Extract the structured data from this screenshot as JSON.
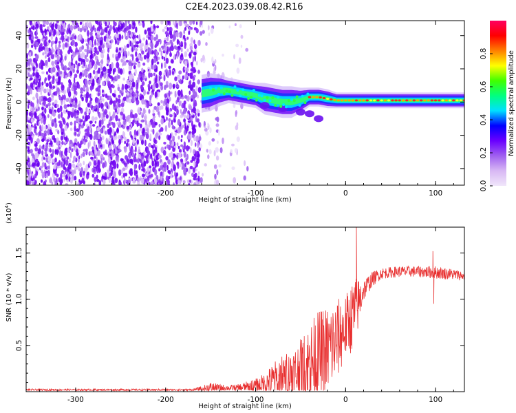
{
  "title": "C2E4.2023.039.08.42.R16",
  "spectrogram": {
    "type": "heatmap",
    "xlabel": "Height of straight line (km)",
    "ylabel": "Frequency (Hz)",
    "xlim": [
      -355,
      132
    ],
    "ylim": [
      -50,
      49
    ],
    "xticks": [
      -300,
      -200,
      -100,
      0,
      100
    ],
    "yticks": [
      -40,
      -20,
      0,
      20,
      40
    ],
    "tick_labels_x": [
      "-300",
      "-200",
      "-100",
      "0",
      "100"
    ],
    "tick_labels_y": [
      "-40",
      "-20",
      "0",
      "20",
      "40"
    ],
    "ridge": {
      "x": [
        -160,
        -150,
        -140,
        -130,
        -120,
        -110,
        -100,
        -90,
        -80,
        -70,
        -60,
        -50,
        -40,
        -30,
        -20,
        -10,
        0,
        20,
        40,
        60,
        80,
        100,
        120,
        132
      ],
      "center_hz": [
        5,
        6,
        7,
        7,
        6,
        5,
        4,
        2,
        1,
        0,
        0,
        1,
        3,
        3,
        2,
        1,
        1,
        1,
        1,
        1,
        1,
        1,
        1,
        1
      ],
      "halfwidth_hz": [
        6,
        6,
        5,
        4,
        4,
        4,
        4,
        5,
        5,
        5,
        5,
        4,
        3,
        3,
        3,
        2.5,
        2.5,
        2.5,
        2.5,
        2.5,
        2.5,
        2.5,
        2.5,
        2.5
      ]
    },
    "colorbar": {
      "label": "Normalized spectral amplitude",
      "range": [
        0,
        1
      ],
      "ticks": [
        "0.0",
        "0.2",
        "0.4",
        "0.6",
        "0.8"
      ],
      "tick_values": [
        0,
        0.2,
        0.4,
        0.6,
        0.8
      ],
      "colors": [
        "#f0e6fa",
        "#d8b8f4",
        "#a060f0",
        "#6a00ff",
        "#0000ff",
        "#00e0ff",
        "#00ff80",
        "#40ff00",
        "#ffff00",
        "#ff8000",
        "#ff0000",
        "#ff0060"
      ]
    }
  },
  "snr": {
    "type": "line",
    "xlabel": "Height of straight line (km)",
    "ylabel": "SNR (10 * v/v)",
    "multiplier": "(x10",
    "exponent": "4",
    "multiplier_close": ")",
    "xlim": [
      -355,
      132
    ],
    "ylim": [
      0,
      1.78
    ],
    "xticks": [
      -300,
      -200,
      -100,
      0,
      100
    ],
    "tick_labels_x": [
      "-300",
      "-200",
      "-100",
      "0",
      "100"
    ],
    "yticks": [
      0.5,
      1.0,
      1.5
    ],
    "tick_labels_y": [
      "0.5",
      "1.0",
      "1.5"
    ],
    "color": "#e83030",
    "envelope": {
      "x": [
        -355,
        -170,
        -160,
        -150,
        -140,
        -130,
        -120,
        -110,
        -100,
        -90,
        -80,
        -70,
        -60,
        -50,
        -40,
        -30,
        -20,
        -10,
        0,
        10,
        20,
        30,
        40,
        60,
        80,
        100,
        120,
        132
      ],
      "base": [
        0.02,
        0.02,
        0.03,
        0.04,
        0.04,
        0.04,
        0.04,
        0.05,
        0.06,
        0.08,
        0.12,
        0.15,
        0.18,
        0.22,
        0.3,
        0.38,
        0.45,
        0.55,
        0.7,
        0.85,
        1.1,
        1.22,
        1.28,
        1.3,
        1.3,
        1.29,
        1.27,
        1.25
      ],
      "jitter": [
        0.01,
        0.01,
        0.03,
        0.06,
        0.04,
        0.03,
        0.04,
        0.06,
        0.08,
        0.12,
        0.2,
        0.25,
        0.28,
        0.35,
        0.45,
        0.5,
        0.5,
        0.45,
        0.35,
        0.4,
        0.12,
        0.08,
        0.06,
        0.06,
        0.06,
        0.07,
        0.06,
        0.05
      ]
    },
    "spikes": [
      {
        "x": 12,
        "y": 1.78
      },
      {
        "x": 97,
        "y": 1.52
      },
      {
        "x": 98,
        "y": 0.95
      }
    ]
  }
}
